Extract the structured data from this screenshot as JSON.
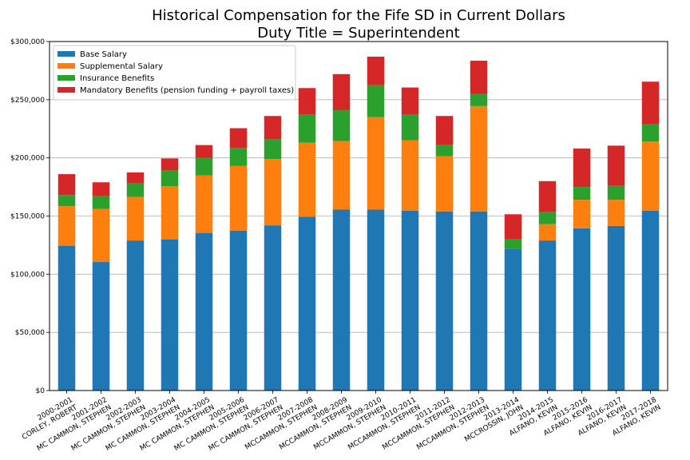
{
  "chart_data": {
    "type": "bar",
    "stacked": true,
    "title": [
      "Historical Compensation for the Fife SD in Current Dollars",
      "Duty Title = Superintendent"
    ],
    "xlabel": "",
    "ylabel": "",
    "ylim": [
      0,
      300000
    ],
    "yticks": [
      0,
      50000,
      100000,
      150000,
      200000,
      250000,
      300000
    ],
    "ytick_labels": [
      "$0",
      "$50,000",
      "$100,000",
      "$150,000",
      "$200,000",
      "$250,000",
      "$300,000"
    ],
    "grid": "horizontal",
    "legend_position": "top-left",
    "categories": [
      [
        "2000-2001",
        "CORLEY, ROBERT"
      ],
      [
        "2001-2002",
        "MC CAMMON, STEPHEN"
      ],
      [
        "2002-2003",
        "MC CAMMON, STEPHEN"
      ],
      [
        "2003-2004",
        "MC CAMMON, STEPHEN"
      ],
      [
        "2004-2005",
        "MC CAMMON, STEPHEN"
      ],
      [
        "2005-2006",
        "MC CAMMON, STEPHEN"
      ],
      [
        "2006-2007",
        "MC CAMMON, STEPHEN"
      ],
      [
        "2007-2008",
        "MCCAMMON, STEPHEN"
      ],
      [
        "2008-2009",
        "MCCAMMON, STEPHEN"
      ],
      [
        "2009-2010",
        "MCCAMMON, STEPHEN"
      ],
      [
        "2010-2011",
        "MCCAMMON, STEPHEN"
      ],
      [
        "2011-2012",
        "MCCAMMON, STEPHEN"
      ],
      [
        "2012-2013",
        "MCCAMMON, STEPHEN"
      ],
      [
        "2013-2014",
        "MCCROSSIN, JOHN"
      ],
      [
        "2014-2015",
        "ALFANO, KEVIN"
      ],
      [
        "2015-2016",
        "ALFANO, KEVIN"
      ],
      [
        "2016-2017",
        "ALFANO, KEVIN"
      ],
      [
        "2017-2018",
        "ALFANO, KEVIN"
      ]
    ],
    "series": [
      {
        "name": "Base Salary",
        "color": "#1f77b4",
        "values": [
          124500,
          110500,
          129000,
          130000,
          135500,
          137500,
          142000,
          149500,
          155500,
          155500,
          154500,
          154000,
          154000,
          122000,
          129000,
          139500,
          141500,
          154500
        ]
      },
      {
        "name": "Supplemental Salary",
        "color": "#ff7f0e",
        "values": [
          34000,
          45500,
          37500,
          45500,
          49500,
          55500,
          57000,
          63500,
          59000,
          79500,
          60500,
          47500,
          90500,
          0,
          14000,
          24500,
          22500,
          59500
        ]
      },
      {
        "name": "Insurance Benefits",
        "color": "#2ca02c",
        "values": [
          9500,
          11500,
          11500,
          13500,
          15000,
          15500,
          17000,
          24500,
          26500,
          27500,
          22000,
          9500,
          10500,
          8000,
          10500,
          11000,
          12000,
          15000
        ]
      },
      {
        "name": "Mandatory Benefits (pension funding + payroll taxes)",
        "color": "#d62728",
        "values": [
          18000,
          11500,
          9500,
          10500,
          11000,
          17000,
          20000,
          22500,
          31000,
          24500,
          23500,
          25000,
          28500,
          21500,
          26500,
          33000,
          34500,
          36500
        ]
      }
    ]
  }
}
